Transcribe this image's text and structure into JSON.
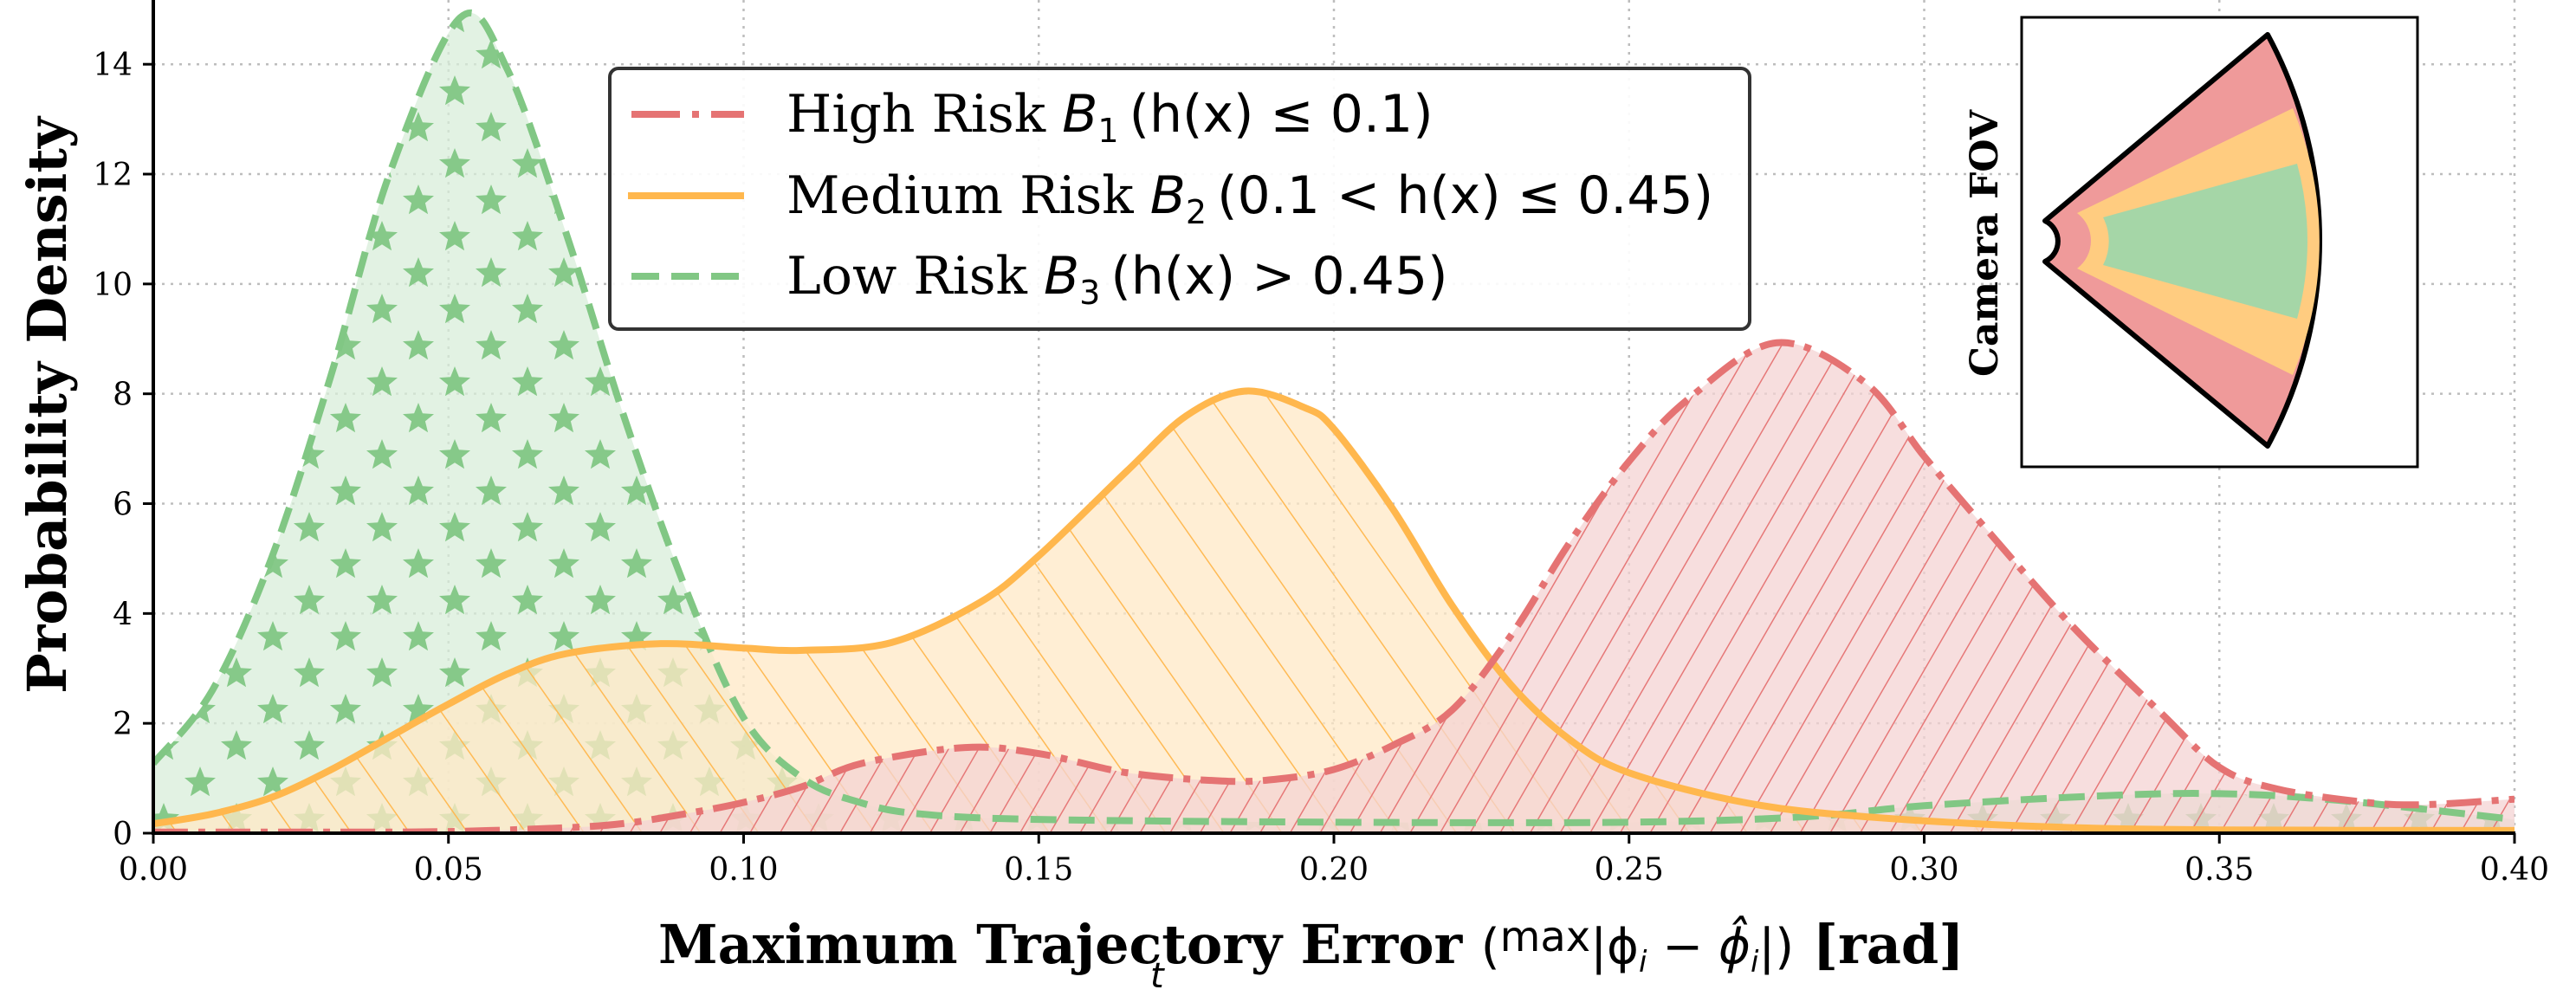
{
  "chart_data": {
    "type": "area",
    "title": "",
    "xlabel": "Maximum Trajectory Error",
    "xlabel_math": "(max_t |φ_i − φ̂_i|)",
    "xlabel_unit": "[rad]",
    "ylabel": "Probability Density",
    "xlim": [
      0.0,
      0.4
    ],
    "ylim": [
      0,
      15.17
    ],
    "grid": true,
    "legend_position": "upper center",
    "x_ticks": [
      "0.00",
      "0.05",
      "0.10",
      "0.15",
      "0.20",
      "0.25",
      "0.30",
      "0.35",
      "0.40"
    ],
    "y_ticks": [
      "0",
      "2",
      "4",
      "6",
      "8",
      "10",
      "12",
      "14"
    ],
    "series": [
      {
        "name": "High Risk B1 (h(x) ≤ 0.1)",
        "key": "high",
        "line_style": "dash-dot",
        "hatch": "/",
        "color": "#e57373",
        "fill": "#f4d3d3",
        "points": [
          [
            0.0,
            0.02
          ],
          [
            0.03,
            0.02
          ],
          [
            0.05,
            0.03
          ],
          [
            0.07,
            0.1
          ],
          [
            0.08,
            0.18
          ],
          [
            0.09,
            0.35
          ],
          [
            0.1,
            0.56
          ],
          [
            0.11,
            0.85
          ],
          [
            0.12,
            1.27
          ],
          [
            0.1375,
            1.56
          ],
          [
            0.15,
            1.45
          ],
          [
            0.165,
            1.1
          ],
          [
            0.181,
            0.95
          ],
          [
            0.19,
            0.98
          ],
          [
            0.2,
            1.16
          ],
          [
            0.21,
            1.6
          ],
          [
            0.22,
            2.24
          ],
          [
            0.23,
            3.6
          ],
          [
            0.24,
            5.3
          ],
          [
            0.25,
            6.77
          ],
          [
            0.26,
            7.9
          ],
          [
            0.275,
            8.93
          ],
          [
            0.29,
            8.2
          ],
          [
            0.3,
            6.86
          ],
          [
            0.31,
            5.6
          ],
          [
            0.325,
            3.78
          ],
          [
            0.34,
            2.2
          ],
          [
            0.35,
            1.2
          ],
          [
            0.36,
            0.8
          ],
          [
            0.375,
            0.56
          ],
          [
            0.385,
            0.52
          ],
          [
            0.4,
            0.62
          ]
        ]
      },
      {
        "name": "Medium Risk B2 (0.1 < h(x) ≤ 0.45)",
        "key": "medium",
        "line_style": "solid",
        "hatch": "\\",
        "color": "#ffb74d",
        "fill": "#ffe8c6",
        "points": [
          [
            0.0,
            0.17
          ],
          [
            0.01,
            0.35
          ],
          [
            0.02,
            0.65
          ],
          [
            0.03,
            1.15
          ],
          [
            0.04,
            1.75
          ],
          [
            0.05,
            2.35
          ],
          [
            0.06,
            2.9
          ],
          [
            0.07,
            3.27
          ],
          [
            0.0856,
            3.45
          ],
          [
            0.1,
            3.37
          ],
          [
            0.11,
            3.33
          ],
          [
            0.125,
            3.47
          ],
          [
            0.14,
            4.2
          ],
          [
            0.15,
            5.05
          ],
          [
            0.165,
            6.6
          ],
          [
            0.175,
            7.6
          ],
          [
            0.185,
            8.05
          ],
          [
            0.195,
            7.75
          ],
          [
            0.2,
            7.36
          ],
          [
            0.21,
            5.9
          ],
          [
            0.22,
            4.15
          ],
          [
            0.23,
            2.7
          ],
          [
            0.24,
            1.7
          ],
          [
            0.25,
            1.1
          ],
          [
            0.27,
            0.55
          ],
          [
            0.29,
            0.3
          ],
          [
            0.32,
            0.12
          ],
          [
            0.35,
            0.06
          ],
          [
            0.4,
            0.05
          ]
        ]
      },
      {
        "name": "Low Risk B3 (h(x) > 0.45)",
        "key": "low",
        "line_style": "dashed",
        "hatch": "*",
        "color": "#81c784",
        "fill": "#d8eed9",
        "points": [
          [
            0.0,
            1.27
          ],
          [
            0.01,
            2.6
          ],
          [
            0.02,
            5.0
          ],
          [
            0.03,
            8.3
          ],
          [
            0.04,
            12.0
          ],
          [
            0.052,
            14.85
          ],
          [
            0.06,
            13.9
          ],
          [
            0.07,
            10.9
          ],
          [
            0.08,
            7.5
          ],
          [
            0.09,
            4.5
          ],
          [
            0.1,
            2.1
          ],
          [
            0.11,
            1.0
          ],
          [
            0.12,
            0.55
          ],
          [
            0.13,
            0.35
          ],
          [
            0.15,
            0.25
          ],
          [
            0.2,
            0.2
          ],
          [
            0.25,
            0.2
          ],
          [
            0.28,
            0.3
          ],
          [
            0.3,
            0.5
          ],
          [
            0.33,
            0.68
          ],
          [
            0.35,
            0.72
          ],
          [
            0.37,
            0.6
          ],
          [
            0.4,
            0.25
          ]
        ]
      }
    ],
    "inset": {
      "label": "Camera FOV",
      "regions": [
        {
          "name": "high",
          "color": "#ef9a9a"
        },
        {
          "name": "medium",
          "color": "#ffcc80"
        },
        {
          "name": "low",
          "color": "#a5d6a7"
        }
      ]
    }
  },
  "legend": {
    "items": [
      {
        "prefix": "High Risk ",
        "var": "B",
        "sub": "1",
        "cond": "(h(x) ≤ 0.1)"
      },
      {
        "prefix": "Medium Risk ",
        "var": "B",
        "sub": "2",
        "cond": "(0.1 < h(x) ≤ 0.45)"
      },
      {
        "prefix": "Low Risk ",
        "var": "B",
        "sub": "3",
        "cond": "(h(x) > 0.45)"
      }
    ]
  },
  "axes": {
    "xlabel_bold": "Maximum Trajectory Error ",
    "xlabel_open": "(",
    "xlabel_max": "max",
    "xlabel_t": "t",
    "xlabel_expr": "|ϕ",
    "xlabel_i1": "i",
    "xlabel_minus": " − ",
    "xlabel_phihat": "ϕ̂",
    "xlabel_i2": "i",
    "xlabel_close": "|)",
    "xlabel_unit": " [rad]",
    "ylabel": "Probability Density"
  },
  "inset": {
    "label": "Camera FOV"
  }
}
